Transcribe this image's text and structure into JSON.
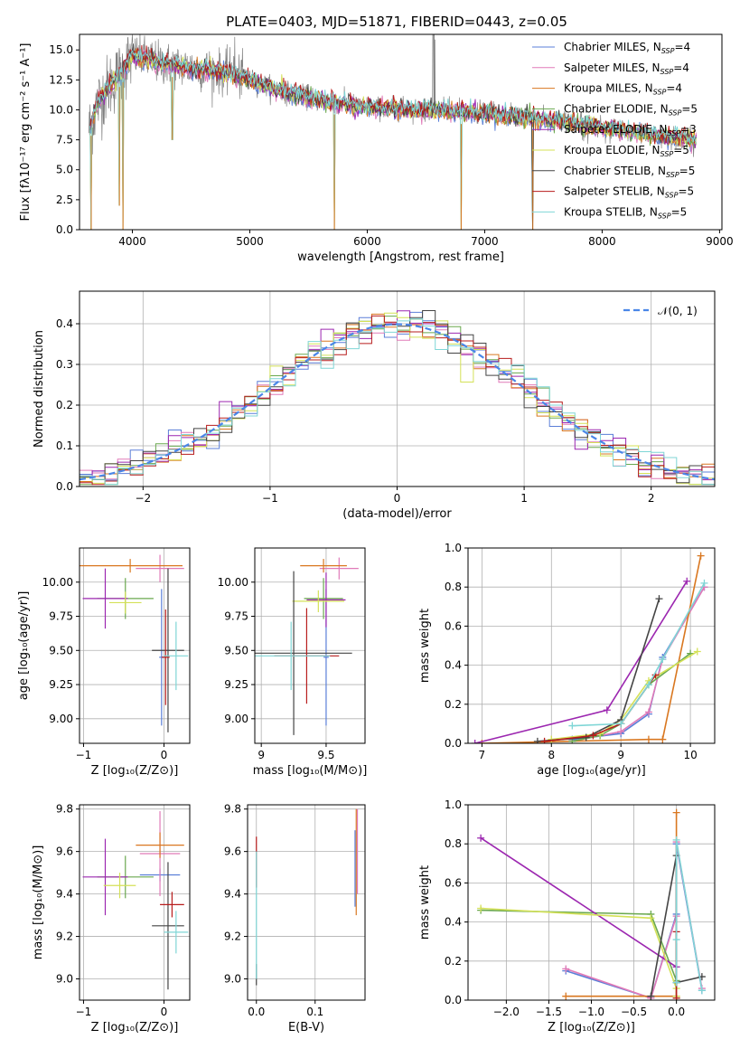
{
  "figure_title": "PLATE=0403, MJD=51871, FIBERID=0443, z=0.05",
  "colors": {
    "chabrier_miles": "#5b7fd8",
    "salpeter_miles": "#e07ab8",
    "kroupa_miles": "#d97720",
    "chabrier_elodie": "#6aa84f",
    "salpeter_elodie": "#9c27b0",
    "kroupa_elodie": "#d4e157",
    "chabrier_stelib": "#444444",
    "salpeter_stelib": "#b71c1c",
    "kroupa_stelib": "#7fd6d6",
    "data": "#808080",
    "normal_curve": "#4a86e8"
  },
  "legend_models": [
    {
      "label": "Chabrier MILES, N",
      "sub": "SSP",
      "suffix": "=4",
      "color": "#5b7fd8"
    },
    {
      "label": "Salpeter MILES, N",
      "sub": "SSP",
      "suffix": "=4",
      "color": "#e07ab8"
    },
    {
      "label": "Kroupa MILES, N",
      "sub": "SSP",
      "suffix": "=4",
      "color": "#d97720"
    },
    {
      "label": "Chabrier ELODIE, N",
      "sub": "SSP",
      "suffix": "=5",
      "color": "#6aa84f"
    },
    {
      "label": "Salpeter ELODIE, N",
      "sub": "SSP",
      "suffix": "=3",
      "color": "#9c27b0"
    },
    {
      "label": "Kroupa ELODIE, N",
      "sub": "SSP",
      "suffix": "=5",
      "color": "#d4e157"
    },
    {
      "label": "Chabrier STELIB, N",
      "sub": "SSP",
      "suffix": "=5",
      "color": "#444444"
    },
    {
      "label": "Salpeter STELIB, N",
      "sub": "SSP",
      "suffix": "=5",
      "color": "#b71c1c"
    },
    {
      "label": "Kroupa STELIB, N",
      "sub": "SSP",
      "suffix": "=5",
      "color": "#7fd6d6"
    }
  ],
  "chart_data": [
    {
      "id": "spectrum",
      "type": "line",
      "xlabel": "wavelength [Angstrom, rest frame]",
      "ylabel": "Flux [fλ10⁻¹⁷ erg cm⁻² s⁻¹ A⁻¹]",
      "xlim": [
        3550,
        9020
      ],
      "ylim": [
        0,
        16.3
      ],
      "xticks": [
        4000,
        5000,
        6000,
        7000,
        8000,
        9000
      ],
      "yticks": [
        0.0,
        2.5,
        5.0,
        7.5,
        10.0,
        12.5,
        15.0
      ],
      "ytick_labels": [
        "0.0",
        "2.5",
        "5.0",
        "7.5",
        "10.0",
        "12.5",
        "15.0"
      ],
      "model_continuum": {
        "x": [
          3640,
          3700,
          3800,
          3900,
          4000,
          4100,
          4200,
          4300,
          4500,
          4700,
          5000,
          5300,
          5600,
          6000,
          6500,
          7000,
          7500,
          8000,
          8500,
          8800
        ],
        "y": [
          8.5,
          10.5,
          12.0,
          13.0,
          14.5,
          14.3,
          14.0,
          13.8,
          13.5,
          13.3,
          12.5,
          11.5,
          10.8,
          10.2,
          10.0,
          9.7,
          9.2,
          8.5,
          7.8,
          7.5
        ]
      },
      "model_dips": [
        {
          "x": 3650,
          "y": 0.0
        },
        {
          "x": 3890,
          "y": 2.0
        },
        {
          "x": 3920,
          "y": 0.0
        },
        {
          "x": 4340,
          "y": 7.5
        },
        {
          "x": 5720,
          "y": 0.0
        },
        {
          "x": 6800,
          "y": 0.0
        },
        {
          "x": 7410,
          "y": 0.0
        }
      ]
    },
    {
      "id": "residual_histogram",
      "type": "histogram",
      "xlabel": "(data-model)/error",
      "ylabel": "Normed distribution",
      "xlim": [
        -2.5,
        2.5
      ],
      "ylim": [
        0,
        0.48
      ],
      "xticks": [
        -2,
        -1,
        0,
        1,
        2
      ],
      "yticks": [
        0.0,
        0.1,
        0.2,
        0.3,
        0.4
      ],
      "ytick_labels": [
        "0.0",
        "0.1",
        "0.2",
        "0.3",
        "0.4"
      ],
      "bin_width": 0.1,
      "legend": "𝒩(0, 1)",
      "reference_curve": "normal pdf mean 0 sigma 1"
    },
    {
      "id": "age_vs_Z",
      "type": "errorbar",
      "xlabel": "Z [log₁₀(Z/Z⊙)]",
      "ylabel": "age  [log₁₀(age/yr)]",
      "xlim": [
        -1.05,
        0.32
      ],
      "ylim": [
        8.82,
        10.25
      ],
      "xticks": [
        -1,
        0
      ],
      "yticks": [
        9.0,
        9.25,
        9.5,
        9.75,
        10.0
      ],
      "ytick_labels": [
        "9.00",
        "9.25",
        "9.50",
        "9.75",
        "10.00"
      ],
      "points": [
        {
          "model": "chabrier_miles",
          "x": -0.03,
          "y": 9.45,
          "xerr": 0.03,
          "yerr": 0.5
        },
        {
          "model": "salpeter_miles",
          "x": -0.05,
          "y": 10.1,
          "xerr": 0.3,
          "yerr": 0.1
        },
        {
          "model": "kroupa_miles",
          "x": -0.42,
          "y": 10.12,
          "xerr": 0.65,
          "yerr": 0.05
        },
        {
          "model": "chabrier_elodie",
          "x": -0.48,
          "y": 9.88,
          "xerr": 0.35,
          "yerr": 0.15
        },
        {
          "model": "salpeter_elodie",
          "x": -0.73,
          "y": 9.88,
          "xerr": 0.28,
          "yerr": 0.22
        },
        {
          "model": "kroupa_elodie",
          "x": -0.48,
          "y": 9.85,
          "xerr": 0.2,
          "yerr": 0.08
        },
        {
          "model": "chabrier_stelib",
          "x": 0.05,
          "y": 9.5,
          "xerr": 0.2,
          "yerr": 0.6
        },
        {
          "model": "salpeter_stelib",
          "x": 0.02,
          "y": 9.45,
          "xerr": 0.05,
          "yerr": 0.35
        },
        {
          "model": "kroupa_stelib",
          "x": 0.15,
          "y": 9.46,
          "xerr": 0.15,
          "yerr": 0.25
        }
      ]
    },
    {
      "id": "age_vs_mass",
      "type": "errorbar",
      "xlabel": "mass [log₁₀(M/M⊙)]",
      "ylabel": "",
      "xlim": [
        8.95,
        9.8
      ],
      "ylim": [
        8.82,
        10.25
      ],
      "xticks": [
        9.0,
        9.5
      ],
      "yticks": [
        9.0,
        9.25,
        9.5,
        9.75,
        10.0
      ],
      "ytick_labels": [
        "9.00",
        "9.25",
        "9.50",
        "9.75",
        "10.00"
      ],
      "points": [
        {
          "model": "chabrier_miles",
          "x": 9.5,
          "y": 9.45,
          "xerr": 0.02,
          "yerr": 0.5
        },
        {
          "model": "salpeter_miles",
          "x": 9.6,
          "y": 10.1,
          "xerr": 0.15,
          "yerr": 0.08
        },
        {
          "model": "kroupa_miles",
          "x": 9.48,
          "y": 10.12,
          "xerr": 0.18,
          "yerr": 0.05
        },
        {
          "model": "chabrier_elodie",
          "x": 9.48,
          "y": 9.88,
          "xerr": 0.15,
          "yerr": 0.15
        },
        {
          "model": "salpeter_elodie",
          "x": 9.5,
          "y": 9.87,
          "xerr": 0.15,
          "yerr": 0.2
        },
        {
          "model": "kroupa_elodie",
          "x": 9.44,
          "y": 9.86,
          "xerr": 0.2,
          "yerr": 0.08
        },
        {
          "model": "chabrier_stelib",
          "x": 9.25,
          "y": 9.48,
          "xerr": 0.45,
          "yerr": 0.6
        },
        {
          "model": "salpeter_stelib",
          "x": 9.35,
          "y": 9.46,
          "xerr": 0.25,
          "yerr": 0.35
        },
        {
          "model": "kroupa_stelib",
          "x": 9.23,
          "y": 9.46,
          "xerr": 0.3,
          "yerr": 0.25
        }
      ]
    },
    {
      "id": "weight_vs_age",
      "type": "line",
      "xlabel": "age  [log₁₀(age/yr)]",
      "ylabel": "mass weight",
      "xlim": [
        6.8,
        10.35
      ],
      "ylim": [
        0,
        1.0
      ],
      "xticks": [
        7,
        8,
        9,
        10
      ],
      "yticks": [
        0.0,
        0.2,
        0.4,
        0.6,
        0.8,
        1.0
      ],
      "ytick_labels": [
        "0.0",
        "0.2",
        "0.4",
        "0.6",
        "0.8",
        "1.0"
      ],
      "series": [
        {
          "model": "chabrier_miles",
          "x": [
            8.3,
            9.0,
            9.4,
            9.6,
            10.2
          ],
          "y": [
            0.02,
            0.05,
            0.15,
            0.44,
            0.8
          ]
        },
        {
          "model": "salpeter_miles",
          "x": [
            8.3,
            9.0,
            9.4,
            9.6,
            10.2
          ],
          "y": [
            0.01,
            0.06,
            0.16,
            0.43,
            0.8
          ]
        },
        {
          "model": "kroupa_miles",
          "x": [
            7.0,
            9.4,
            9.6,
            10.15
          ],
          "y": [
            0.0,
            0.02,
            0.02,
            0.96
          ]
        },
        {
          "model": "chabrier_elodie",
          "x": [
            8.3,
            8.7,
            9.0,
            9.4,
            10.0
          ],
          "y": [
            0.01,
            0.04,
            0.1,
            0.3,
            0.46
          ]
        },
        {
          "model": "salpeter_elodie",
          "x": [
            6.9,
            8.8,
            9.95
          ],
          "y": [
            0.0,
            0.17,
            0.83
          ]
        },
        {
          "model": "kroupa_elodie",
          "x": [
            8.0,
            8.7,
            9.0,
            9.4,
            10.1
          ],
          "y": [
            0.02,
            0.05,
            0.12,
            0.32,
            0.47
          ]
        },
        {
          "model": "chabrier_stelib",
          "x": [
            7.8,
            8.5,
            9.0,
            9.55
          ],
          "y": [
            0.01,
            0.03,
            0.12,
            0.74
          ]
        },
        {
          "model": "salpeter_stelib",
          "x": [
            7.9,
            8.6,
            9.0,
            9.5
          ],
          "y": [
            0.01,
            0.04,
            0.1,
            0.35
          ]
        },
        {
          "model": "kroupa_stelib",
          "x": [
            8.3,
            9.0,
            9.4,
            9.6,
            10.2
          ],
          "y": [
            0.09,
            0.1,
            0.3,
            0.43,
            0.82
          ]
        }
      ]
    },
    {
      "id": "mass_vs_Z",
      "type": "errorbar",
      "xlabel": "Z [log₁₀(Z/Z⊙)]",
      "ylabel": "mass [log₁₀(M/M⊙)]",
      "xlim": [
        -1.05,
        0.32
      ],
      "ylim": [
        8.9,
        9.82
      ],
      "xticks": [
        -1,
        0
      ],
      "yticks": [
        9.0,
        9.2,
        9.4,
        9.6,
        9.8
      ],
      "ytick_labels": [
        "9.0",
        "9.2",
        "9.4",
        "9.6",
        "9.8"
      ],
      "points": [
        {
          "model": "chabrier_miles",
          "x": -0.05,
          "y": 9.49,
          "xerr": 0.25,
          "yerr": 0.03
        },
        {
          "model": "salpeter_miles",
          "x": -0.05,
          "y": 9.59,
          "xerr": 0.25,
          "yerr": 0.2
        },
        {
          "model": "kroupa_miles",
          "x": -0.05,
          "y": 9.63,
          "xerr": 0.3,
          "yerr": 0.06
        },
        {
          "model": "chabrier_elodie",
          "x": -0.48,
          "y": 9.48,
          "xerr": 0.35,
          "yerr": 0.1
        },
        {
          "model": "salpeter_elodie",
          "x": -0.73,
          "y": 9.48,
          "xerr": 0.28,
          "yerr": 0.18
        },
        {
          "model": "kroupa_elodie",
          "x": -0.55,
          "y": 9.44,
          "xerr": 0.2,
          "yerr": 0.06
        },
        {
          "model": "chabrier_stelib",
          "x": 0.05,
          "y": 9.25,
          "xerr": 0.2,
          "yerr": 0.3
        },
        {
          "model": "salpeter_stelib",
          "x": 0.1,
          "y": 9.35,
          "xerr": 0.15,
          "yerr": 0.06
        },
        {
          "model": "kroupa_stelib",
          "x": 0.15,
          "y": 9.22,
          "xerr": 0.15,
          "yerr": 0.1
        }
      ]
    },
    {
      "id": "mass_vs_ebv",
      "type": "errorbar",
      "xlabel": "E(B-V)",
      "ylabel": "",
      "xlim": [
        -0.015,
        0.185
      ],
      "ylim": [
        8.9,
        9.82
      ],
      "xticks": [
        0.0,
        0.1
      ],
      "xtick_labels": [
        "0.0",
        "0.1"
      ],
      "yticks": [
        9.0,
        9.2,
        9.4,
        9.6,
        9.8
      ],
      "ytick_labels": [
        "9.0",
        "9.2",
        "9.4",
        "9.6",
        "9.8"
      ],
      "points": [
        {
          "model": "salpeter_stelib",
          "x": 0.0,
          "y": 9.55,
          "xerr": 0.0,
          "yerr": 0.12
        },
        {
          "model": "chabrier_stelib",
          "x": 0.0,
          "y": 9.02,
          "xerr": 0.0,
          "yerr": 0.05
        },
        {
          "model": "kroupa_stelib",
          "x": 0.0,
          "y": 9.3,
          "xerr": 0.0,
          "yerr": 0.3
        },
        {
          "model": "kroupa_miles",
          "x": 0.17,
          "y": 9.55,
          "xerr": 0.0,
          "yerr": 0.25
        },
        {
          "model": "salpeter_miles",
          "x": 0.172,
          "y": 9.6,
          "xerr": 0.0,
          "yerr": 0.2
        },
        {
          "model": "chabrier_miles",
          "x": 0.168,
          "y": 9.52,
          "xerr": 0.0,
          "yerr": 0.18
        }
      ]
    },
    {
      "id": "weight_vs_Z",
      "type": "line",
      "xlabel": "Z [log₁₀(Z/Z⊙)]",
      "ylabel": "mass weight",
      "xlim": [
        -2.45,
        0.45
      ],
      "ylim": [
        0,
        1.0
      ],
      "xticks": [
        -2.0,
        -1.5,
        -1.0,
        -0.5,
        0.0
      ],
      "xtick_labels": [
        "−2.0",
        "−1.5",
        "−1.0",
        "−0.5",
        "0.0"
      ],
      "yticks": [
        0.0,
        0.2,
        0.4,
        0.6,
        0.8,
        1.0
      ],
      "ytick_labels": [
        "0.0",
        "0.2",
        "0.4",
        "0.6",
        "0.8",
        "1.0"
      ],
      "series": [
        {
          "model": "chabrier_miles",
          "x": [
            -1.3,
            -0.3,
            0.0,
            0.0,
            0.3
          ],
          "y": [
            0.15,
            0.01,
            0.44,
            0.8,
            0.05
          ]
        },
        {
          "model": "salpeter_miles",
          "x": [
            -1.3,
            -0.3,
            0.0,
            0.0,
            0.3
          ],
          "y": [
            0.16,
            0.01,
            0.43,
            0.81,
            0.06
          ]
        },
        {
          "model": "kroupa_miles",
          "x": [
            -1.3,
            0.0,
            0.0
          ],
          "y": [
            0.02,
            0.02,
            0.96
          ]
        },
        {
          "model": "chabrier_elodie",
          "x": [
            -2.3,
            -0.3,
            0.0,
            0.0
          ],
          "y": [
            0.46,
            0.44,
            0.1,
            0.01
          ]
        },
        {
          "model": "salpeter_elodie",
          "x": [
            -2.3,
            0.0
          ],
          "y": [
            0.83,
            0.17
          ]
        },
        {
          "model": "kroupa_elodie",
          "x": [
            -2.3,
            -0.3,
            0.0,
            0.0
          ],
          "y": [
            0.47,
            0.42,
            0.06,
            0.02
          ]
        },
        {
          "model": "chabrier_stelib",
          "x": [
            -0.3,
            0.0,
            0.0,
            0.3
          ],
          "y": [
            0.02,
            0.74,
            0.09,
            0.12
          ]
        },
        {
          "model": "salpeter_stelib",
          "x": [
            0.0,
            0.0
          ],
          "y": [
            0.01,
            0.35
          ]
        },
        {
          "model": "kroupa_stelib",
          "x": [
            0.0,
            0.0,
            0.0,
            0.3
          ],
          "y": [
            0.09,
            0.31,
            0.82,
            0.05
          ]
        }
      ]
    }
  ]
}
